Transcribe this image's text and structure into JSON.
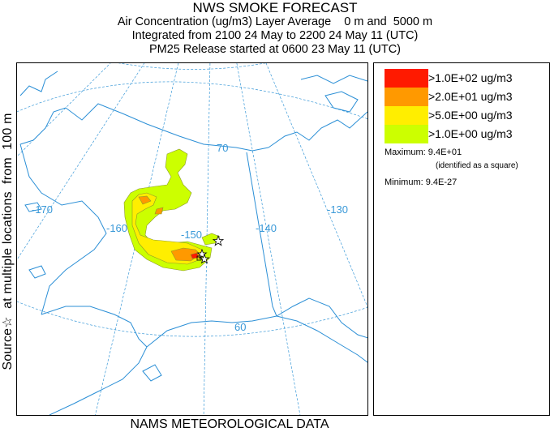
{
  "title": {
    "main": "NWS SMOKE FORECAST",
    "line1": "Air Concentration (ug/m3) Layer Average    0 m and  5000 m",
    "line2": "Integrated from 2100 24 May to 2200 24 May 11 (UTC)",
    "line3": "PM25 Release started at 0600 23 May 11 (UTC)"
  },
  "side_label": "Source☆  at multiple locations  from  100 m",
  "footer": "NAMS METEOROLOGICAL DATA",
  "map": {
    "graticule_labels": {
      "lon_170": "-170",
      "lon_160": "-160",
      "lon_150": "-150",
      "lon_140": "-140",
      "lon_130": "-130",
      "lat_70": "70",
      "lat_60": "60"
    },
    "colors": {
      "coast": "#2b8fd6",
      "grid": "#3a99d8",
      "border": "#2b8fd6"
    }
  },
  "legend": {
    "items": [
      {
        "label": ">1.0E+02 ug/m3",
        "color": "#ff1a00"
      },
      {
        "label": ">2.0E+01 ug/m3",
        "color": "#ff9900"
      },
      {
        "label": ">5.0E+00 ug/m3",
        "color": "#ffee00"
      },
      {
        "label": ">1.0E+00 ug/m3",
        "color": "#ccff00"
      }
    ],
    "maximum_label": "Maximum: 9.4E+01",
    "maximum_note": "(identified as a square)",
    "minimum_label": "Minimum: 9.4E-27"
  }
}
